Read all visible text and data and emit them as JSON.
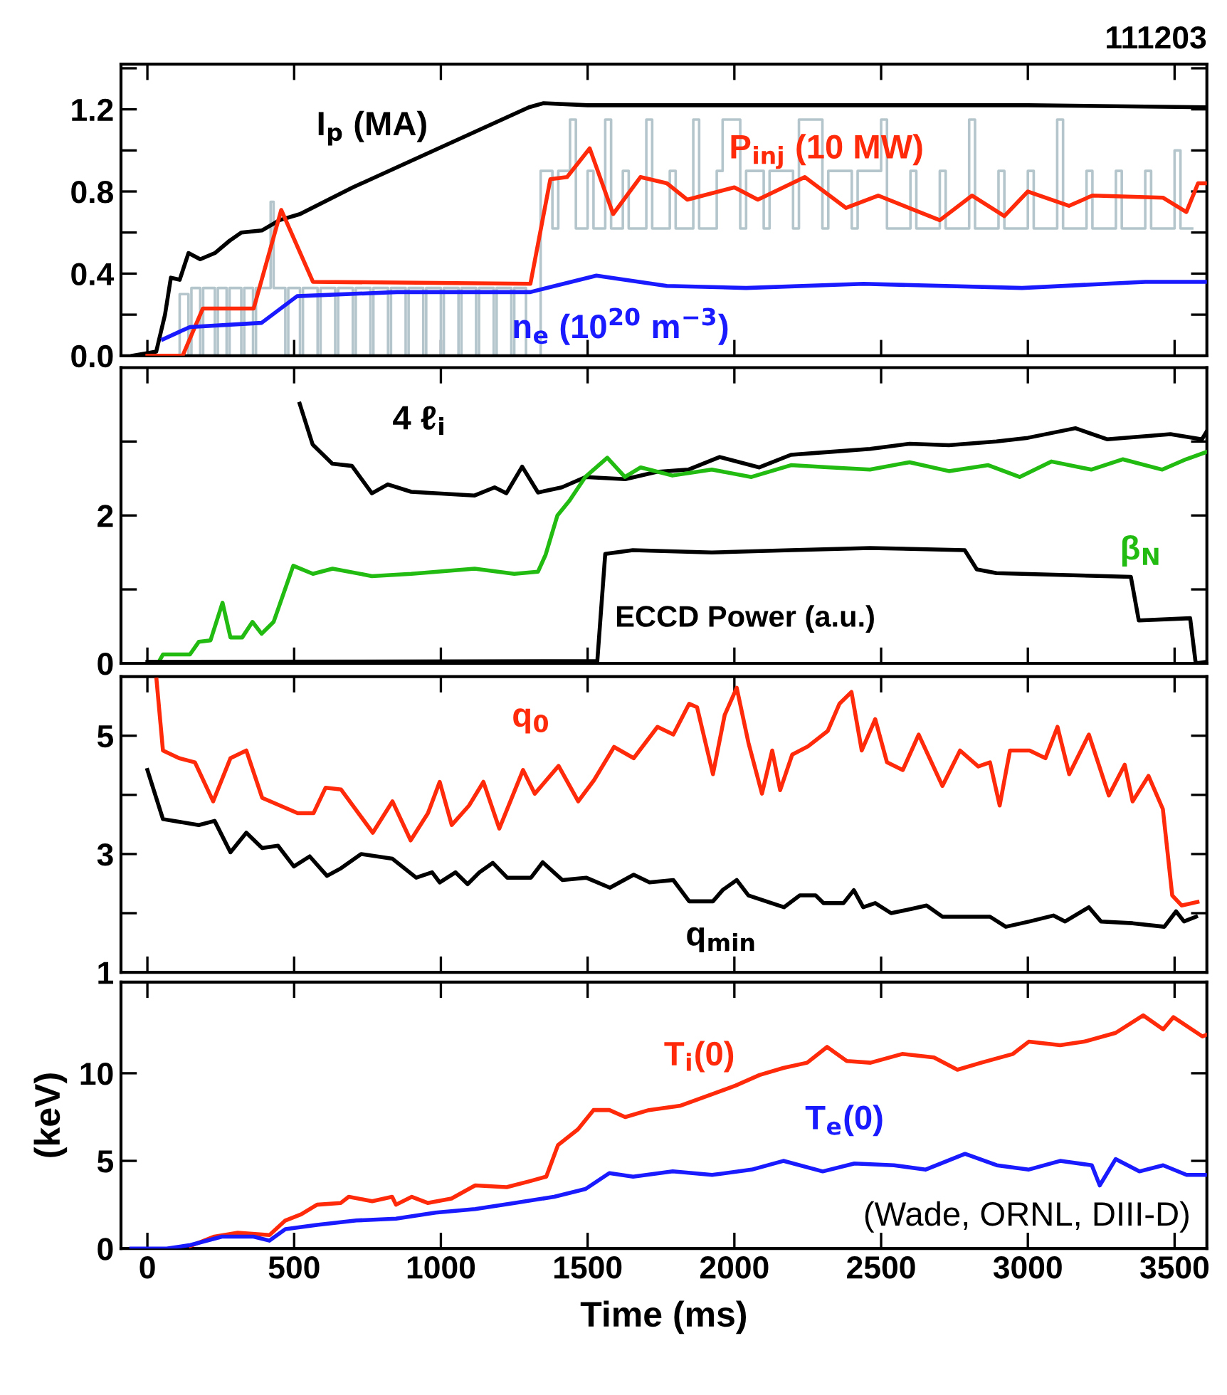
{
  "chart_data": [
    {
      "type": "line",
      "title": "111203",
      "xlim": [
        -90,
        3610
      ],
      "xticks": [
        {
          "value": 0,
          "label": null
        },
        {
          "value": 500,
          "label": null
        },
        {
          "value": 1000,
          "label": null
        },
        {
          "value": 1500,
          "label": null
        },
        {
          "value": 2000,
          "label": null
        },
        {
          "value": 2500,
          "label": null
        },
        {
          "value": 3000,
          "label": null
        },
        {
          "value": 3500,
          "label": null
        }
      ],
      "ylim": [
        0,
        1.42
      ],
      "yticks": [
        {
          "value": 0,
          "label": "0.0"
        },
        {
          "value": 0.2,
          "label": null
        },
        {
          "value": 0.4,
          "label": "0.4"
        },
        {
          "value": 0.6,
          "label": null
        },
        {
          "value": 0.8,
          "label": "0.8"
        },
        {
          "value": 1.0,
          "label": null
        },
        {
          "value": 1.2,
          "label": "1.2"
        },
        {
          "value": 1.4,
          "label": null
        }
      ],
      "tick_labels": "y",
      "series": [
        {
          "type": "step",
          "color": "#b4c6cc",
          "x": [
            0,
            100,
            110,
            140,
            150,
            180,
            190,
            230,
            240,
            270,
            280,
            320,
            330,
            360,
            370,
            420,
            430,
            470,
            480,
            520,
            530,
            580,
            590,
            640,
            650,
            700,
            710,
            760,
            770,
            820,
            830,
            880,
            890,
            940,
            950,
            1000,
            1010,
            1060,
            1070,
            1120,
            1130,
            1180,
            1190,
            1240,
            1250,
            1290,
            1340,
            1380,
            1400,
            1440,
            1460,
            1500,
            1520,
            1560,
            1580,
            1620,
            1640,
            1700,
            1720,
            1780,
            1800,
            1860,
            1880,
            1940,
            1960,
            2020,
            2040,
            2100,
            2120,
            2200,
            2220,
            2300,
            2320,
            2400,
            2420,
            2500,
            2520,
            2600,
            2620,
            2700,
            2720,
            2800,
            2820,
            2900,
            2920,
            3000,
            3020,
            3100,
            3120,
            3200,
            3220,
            3300,
            3320,
            3400,
            3420,
            3500,
            3520,
            3560
          ],
          "values": [
            0,
            0,
            0.3,
            0,
            0.33,
            0,
            0.33,
            0,
            0.33,
            0,
            0.33,
            0,
            0.33,
            0,
            0.33,
            0.75,
            0.33,
            0,
            0.33,
            0,
            0.33,
            0,
            0.33,
            0,
            0.33,
            0,
            0.33,
            0,
            0.33,
            0,
            0.33,
            0,
            0.33,
            0,
            0.33,
            0,
            0.33,
            0,
            0.33,
            0,
            0.33,
            0,
            0.33,
            0,
            0.33,
            0,
            0.9,
            0.62,
            0.9,
            1.15,
            0.62,
            0.9,
            0.62,
            1.15,
            0.62,
            0.9,
            0.62,
            1.15,
            0.62,
            0.9,
            0.62,
            1.15,
            0.62,
            0.9,
            1.15,
            0.62,
            0.9,
            0.62,
            0.9,
            0.62,
            1.15,
            0.62,
            0.9,
            0.62,
            0.9,
            1.15,
            0.62,
            0.9,
            0.62,
            0.9,
            0.62,
            1.15,
            0.62,
            0.9,
            0.62,
            0.9,
            0.62,
            1.15,
            0.62,
            0.9,
            0.62,
            0.9,
            0.62,
            0.9,
            0.62,
            1.0,
            0.62,
            0.62
          ]
        },
        {
          "name": "I$_{p}$ (MA)",
          "color": "#000000",
          "x": [
            -50,
            30,
            60,
            80,
            110,
            140,
            180,
            230,
            280,
            320,
            390,
            450,
            520,
            700,
            900,
            1100,
            1300,
            1350,
            1500,
            2000,
            2500,
            3000,
            3610
          ],
          "values": [
            0,
            0.02,
            0.2,
            0.38,
            0.37,
            0.5,
            0.47,
            0.5,
            0.56,
            0.6,
            0.61,
            0.66,
            0.69,
            0.82,
            0.95,
            1.08,
            1.21,
            1.23,
            1.22,
            1.22,
            1.22,
            1.22,
            1.21
          ]
        },
        {
          "name": "P$_{inj}$ (10 MW)",
          "color": "#ff2a0a",
          "x": [
            0,
            120,
            189,
            362,
            456,
            564,
            1305,
            1373,
            1430,
            1507,
            1587,
            1680,
            1770,
            1840,
            2000,
            2080,
            2240,
            2380,
            2490,
            2700,
            2810,
            2920,
            3000,
            3140,
            3220,
            3460,
            3540,
            3580,
            3610
          ],
          "values": [
            0,
            0,
            0.23,
            0.23,
            0.71,
            0.36,
            0.35,
            0.86,
            0.87,
            1.01,
            0.69,
            0.87,
            0.84,
            0.76,
            0.82,
            0.76,
            0.87,
            0.72,
            0.78,
            0.66,
            0.78,
            0.68,
            0.8,
            0.73,
            0.78,
            0.77,
            0.7,
            0.84,
            0.84
          ]
        },
        {
          "name": "n$_{e}$ (10$^{20}$ m$^{−3}$)",
          "color": "#1a1aff",
          "x": [
            53,
            145,
            389,
            510,
            850,
            1305,
            1530,
            1770,
            2040,
            2440,
            2980,
            3400,
            3610
          ],
          "values": [
            0.08,
            0.14,
            0.16,
            0.29,
            0.31,
            0.31,
            0.39,
            0.34,
            0.33,
            0.35,
            0.33,
            0.36,
            0.36
          ]
        }
      ]
    },
    {
      "type": "line",
      "xlim": [
        -90,
        3610
      ],
      "xticks": [
        {
          "value": 0,
          "label": null
        },
        {
          "value": 500,
          "label": null
        },
        {
          "value": 1000,
          "label": null
        },
        {
          "value": 1500,
          "label": null
        },
        {
          "value": 2000,
          "label": null
        },
        {
          "value": 2500,
          "label": null
        },
        {
          "value": 3000,
          "label": null
        },
        {
          "value": 3500,
          "label": null
        }
      ],
      "ylim": [
        0,
        4
      ],
      "yticks": [
        0,
        {
          "value": 1,
          "label": null
        },
        2,
        {
          "value": 3,
          "label": null
        }
      ],
      "tick_labels": "y",
      "series": [
        {
          "name": "4 ℓ$_{i}$",
          "color": "#000000",
          "x": [
            519,
            563,
            630,
            697,
            765,
            819,
            899,
            1115,
            1183,
            1223,
            1277,
            1331,
            1412,
            1493,
            1628,
            1735,
            1843,
            1950,
            2085,
            2193,
            2327,
            2462,
            2597,
            2731,
            2893,
            3000,
            3162,
            3270,
            3486,
            3593,
            3610
          ],
          "values": [
            3.51,
            2.96,
            2.7,
            2.67,
            2.3,
            2.42,
            2.32,
            2.27,
            2.38,
            2.3,
            2.66,
            2.31,
            2.38,
            2.52,
            2.49,
            2.59,
            2.62,
            2.79,
            2.65,
            2.82,
            2.86,
            2.9,
            2.97,
            2.95,
            3.0,
            3.05,
            3.18,
            3.03,
            3.1,
            3.03,
            3.14
          ]
        },
        {
          "name": "β$_{N}$",
          "color": "#22bb11",
          "x": [
            39,
            53,
            145,
            175,
            215,
            256,
            283,
            323,
            358,
            389,
            430,
            497,
            564,
            631,
            765,
            899,
            1115,
            1250,
            1331,
            1357,
            1397,
            1438,
            1492,
            1567,
            1627,
            1681,
            1789,
            1923,
            2058,
            2193,
            2327,
            2462,
            2597,
            2731,
            2865,
            2972,
            3080,
            3216,
            3323,
            3458,
            3539,
            3610
          ],
          "values": [
            0.02,
            0.12,
            0.12,
            0.29,
            0.31,
            0.82,
            0.35,
            0.35,
            0.56,
            0.4,
            0.56,
            1.32,
            1.21,
            1.28,
            1.18,
            1.21,
            1.28,
            1.21,
            1.24,
            1.47,
            2.0,
            2.2,
            2.52,
            2.78,
            2.52,
            2.65,
            2.54,
            2.62,
            2.52,
            2.68,
            2.65,
            2.62,
            2.72,
            2.6,
            2.68,
            2.52,
            2.73,
            2.62,
            2.76,
            2.62,
            2.76,
            2.86
          ]
        },
        {
          "name": "ECCD Power (a.u.)",
          "color": "#000000",
          "x": [
            0,
            1533,
            1560,
            1654,
            1923,
            2193,
            2462,
            2785,
            2826,
            2893,
            3351,
            3378,
            3553,
            3572,
            3610
          ],
          "values": [
            0.02,
            0.03,
            1.48,
            1.53,
            1.5,
            1.53,
            1.56,
            1.53,
            1.27,
            1.22,
            1.17,
            0.58,
            0.61,
            0.0,
            0.02
          ]
        }
      ]
    },
    {
      "type": "line",
      "xlim": [
        -90,
        3610
      ],
      "xticks": [
        {
          "value": 0,
          "label": null
        },
        {
          "value": 500,
          "label": null
        },
        {
          "value": 1000,
          "label": null
        },
        {
          "value": 1500,
          "label": null
        },
        {
          "value": 2000,
          "label": null
        },
        {
          "value": 2500,
          "label": null
        },
        {
          "value": 3000,
          "label": null
        },
        {
          "value": 3500,
          "label": null
        }
      ],
      "ylim": [
        1,
        6
      ],
      "yticks": [
        1,
        {
          "value": 2,
          "label": null
        },
        3,
        {
          "value": 4,
          "label": null
        },
        5
      ],
      "tick_labels": "y",
      "series": [
        {
          "name": "q$_{0}$",
          "color": "#ff2a0a",
          "x": [
            31,
            53,
            108,
            162,
            224,
            283,
            337,
            391,
            512,
            566,
            607,
            660,
            768,
            835,
            897,
            956,
            996,
            1037,
            1096,
            1145,
            1199,
            1280,
            1320,
            1401,
            1468,
            1522,
            1590,
            1657,
            1738,
            1792,
            1846,
            1873,
            1927,
            1967,
            2008,
            2048,
            2094,
            2129,
            2156,
            2197,
            2251,
            2318,
            2358,
            2399,
            2434,
            2480,
            2520,
            2574,
            2628,
            2709,
            2769,
            2831,
            2871,
            2904,
            2939,
            3006,
            3060,
            3101,
            3141,
            3208,
            3276,
            3330,
            3357,
            3411,
            3460,
            3492,
            3524,
            3578
          ],
          "values": [
            5.95,
            4.75,
            4.62,
            4.55,
            3.89,
            4.62,
            4.75,
            3.95,
            3.69,
            3.69,
            4.12,
            4.09,
            3.36,
            3.89,
            3.23,
            3.69,
            4.22,
            3.49,
            3.82,
            4.22,
            3.43,
            4.42,
            4.02,
            4.49,
            3.89,
            4.25,
            4.81,
            4.62,
            5.15,
            5.02,
            5.54,
            5.48,
            4.35,
            5.35,
            5.81,
            4.88,
            4.02,
            4.75,
            4.08,
            4.68,
            4.82,
            5.08,
            5.54,
            5.74,
            4.75,
            5.28,
            4.55,
            4.42,
            5.02,
            4.15,
            4.75,
            4.48,
            4.55,
            3.82,
            4.75,
            4.75,
            4.62,
            5.15,
            4.35,
            5.02,
            3.99,
            4.51,
            3.89,
            4.32,
            3.76,
            2.3,
            2.13,
            2.19
          ]
        },
        {
          "name": "q$_{min}$",
          "color": "#000000",
          "x": [
            0,
            53,
            175,
            229,
            283,
            337,
            391,
            445,
            499,
            553,
            612,
            660,
            728,
            835,
            916,
            970,
            996,
            1050,
            1091,
            1131,
            1177,
            1226,
            1307,
            1347,
            1414,
            1495,
            1576,
            1657,
            1711,
            1792,
            1846,
            1927,
            1960,
            2008,
            2048,
            2169,
            2223,
            2277,
            2304,
            2372,
            2407,
            2439,
            2480,
            2534,
            2601,
            2655,
            2709,
            2871,
            2925,
            3006,
            3087,
            3127,
            3208,
            3249,
            3357,
            3465,
            3505,
            3532,
            3573
          ],
          "values": [
            4.42,
            3.59,
            3.49,
            3.56,
            3.03,
            3.36,
            3.1,
            3.14,
            2.79,
            2.96,
            2.63,
            2.76,
            3.0,
            2.92,
            2.6,
            2.69,
            2.52,
            2.69,
            2.49,
            2.69,
            2.85,
            2.6,
            2.6,
            2.86,
            2.56,
            2.6,
            2.43,
            2.65,
            2.52,
            2.56,
            2.2,
            2.2,
            2.39,
            2.56,
            2.3,
            2.1,
            2.3,
            2.3,
            2.17,
            2.17,
            2.39,
            2.1,
            2.17,
            2.0,
            2.07,
            2.13,
            1.94,
            1.94,
            1.77,
            1.86,
            1.96,
            1.86,
            2.1,
            1.86,
            1.83,
            1.77,
            2.03,
            1.86,
            1.94
          ]
        }
      ]
    },
    {
      "type": "line",
      "xlabel": "Time (ms)",
      "ylabel": "(keV)",
      "annotations": [
        "(Wade, ORNL, DIII-D)"
      ],
      "xlim": [
        -90,
        3610
      ],
      "xticks": [
        0,
        500,
        1000,
        1500,
        2000,
        2500,
        3000,
        3500
      ],
      "ylim": [
        0,
        15.2
      ],
      "yticks": [
        0,
        5,
        10
      ],
      "series": [
        {
          "name": "T$_{i}$(0)",
          "color": "#ff2a0a",
          "x": [
            147,
            228,
            308,
            416,
            470,
            524,
            578,
            659,
            686,
            766,
            834,
            847,
            901,
            955,
            1036,
            1117,
            1224,
            1305,
            1359,
            1399,
            1467,
            1520,
            1574,
            1628,
            1709,
            1817,
            1924,
            2005,
            2086,
            2167,
            2248,
            2316,
            2383,
            2464,
            2572,
            2680,
            2760,
            2841,
            2949,
            3003,
            3110,
            3191,
            3299,
            3393,
            3461,
            3496,
            3595,
            3610
          ],
          "values": [
            0.15,
            0.68,
            0.9,
            0.77,
            1.6,
            1.95,
            2.5,
            2.6,
            2.95,
            2.7,
            2.95,
            2.5,
            2.95,
            2.6,
            2.85,
            3.6,
            3.5,
            3.85,
            4.1,
            5.9,
            6.8,
            7.9,
            7.9,
            7.5,
            7.9,
            8.15,
            8.8,
            9.3,
            9.9,
            10.3,
            10.6,
            11.5,
            10.7,
            10.6,
            11.1,
            10.9,
            10.2,
            10.6,
            11.1,
            11.8,
            11.6,
            11.8,
            12.3,
            13.3,
            12.5,
            13.2,
            12.1,
            12.2
          ]
        },
        {
          "name": "T$_{e}$(0)",
          "color": "#1a1aff",
          "x": [
            -55,
            66,
            147,
            254,
            362,
            416,
            470,
            578,
            712,
            847,
            982,
            1117,
            1251,
            1386,
            1493,
            1574,
            1655,
            1790,
            1924,
            2059,
            2167,
            2301,
            2409,
            2544,
            2651,
            2786,
            2894,
            3002,
            3110,
            3218,
            3245,
            3299,
            3380,
            3461,
            3541,
            3610
          ],
          "values": [
            0,
            0,
            0.2,
            0.68,
            0.68,
            0.45,
            1.1,
            1.35,
            1.6,
            1.7,
            2.05,
            2.25,
            2.6,
            2.95,
            3.4,
            4.3,
            4.1,
            4.4,
            4.2,
            4.5,
            5.0,
            4.4,
            4.85,
            4.75,
            4.5,
            5.4,
            4.75,
            4.5,
            5.0,
            4.75,
            3.6,
            5.1,
            4.4,
            4.75,
            4.2,
            4.2
          ]
        }
      ]
    }
  ]
}
